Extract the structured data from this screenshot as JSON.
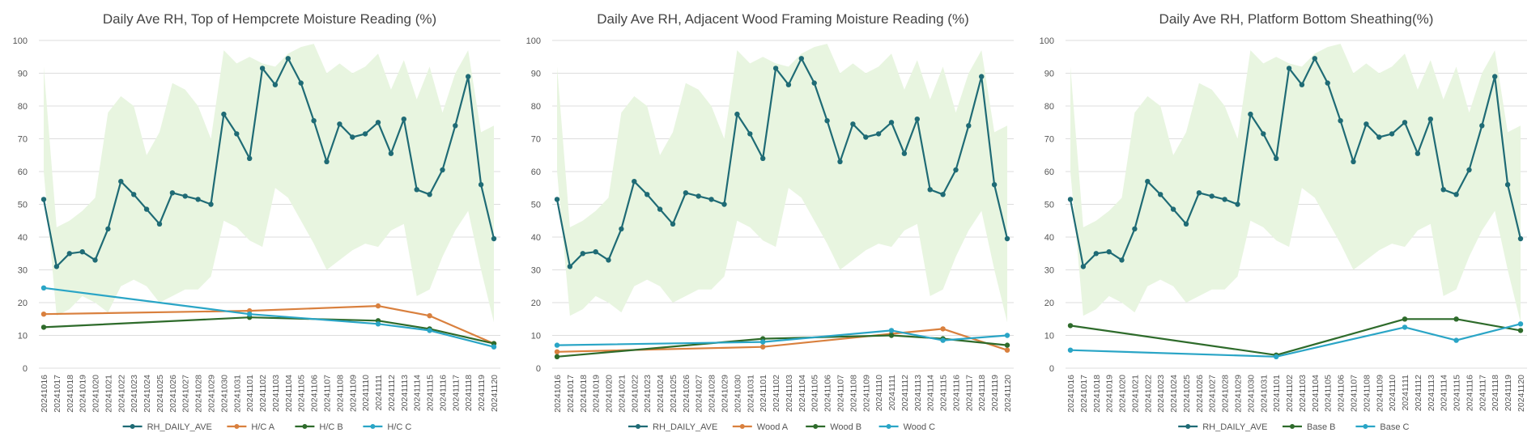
{
  "colors": {
    "rh": "#1f6b75",
    "orange": "#d9803e",
    "green": "#2e6b2b",
    "cyan": "#2aa5c6",
    "band": "#e8f5e0",
    "grid": "#dddddd",
    "text": "#555555"
  },
  "chart_data": [
    {
      "type": "line",
      "title": "Daily Ave RH, Top of Hempcrete Moisture Reading (%)",
      "xlabel": "",
      "ylabel": "",
      "ylim": [
        0,
        100
      ],
      "yticks": [
        0,
        10,
        20,
        30,
        40,
        50,
        60,
        70,
        80,
        90,
        100
      ],
      "grid": true,
      "legend_position": "bottom",
      "categories": [
        "20241016",
        "20241017",
        "20241018",
        "20241019",
        "20241020",
        "20241021",
        "20241022",
        "20241023",
        "20241024",
        "20241025",
        "20241026",
        "20241027",
        "20241028",
        "20241029",
        "20241030",
        "20241031",
        "20241101",
        "20241102",
        "20241103",
        "20241104",
        "20241105",
        "20241106",
        "20241107",
        "20241108",
        "20241109",
        "20241110",
        "20241111",
        "20241112",
        "20241113",
        "20241114",
        "20241115",
        "20241116",
        "20241117",
        "20241118",
        "20241119",
        "20241120"
      ],
      "band": {
        "min": [
          60,
          16,
          18,
          22,
          20,
          17,
          25,
          27,
          25,
          20,
          22,
          24,
          24,
          28,
          45,
          43,
          39,
          37,
          55,
          52,
          45,
          38,
          30,
          33,
          36,
          38,
          37,
          42,
          44,
          22,
          24,
          34,
          42,
          48,
          30,
          14
        ],
        "max": [
          92,
          43,
          45,
          48,
          52,
          78,
          83,
          80,
          65,
          72,
          87,
          85,
          80,
          70,
          97,
          93,
          95,
          93,
          92,
          96,
          98,
          99,
          90,
          93,
          90,
          92,
          96,
          85,
          94,
          82,
          92,
          78,
          90,
          97,
          72,
          74
        ]
      },
      "series": [
        {
          "name": "RH_DAILY_AVE",
          "color": "#1f6b75",
          "values": [
            51.5,
            31,
            35,
            35.5,
            33,
            42.5,
            57,
            53,
            48.5,
            44,
            53.5,
            52.5,
            51.5,
            50,
            77.5,
            71.5,
            64,
            91.5,
            86.5,
            94.5,
            87,
            75.5,
            63,
            74.5,
            70.5,
            71.5,
            75,
            65.5,
            76,
            54.5,
            53,
            60.5,
            74,
            89,
            56,
            39.5
          ]
        },
        {
          "name": "H/C A",
          "color": "#d9803e",
          "points": [
            [
              0,
              16.5
            ],
            [
              16,
              17.5
            ],
            [
              26,
              19
            ],
            [
              30,
              16
            ],
            [
              35,
              7.5
            ]
          ]
        },
        {
          "name": "H/C B",
          "color": "#2e6b2b",
          "points": [
            [
              0,
              12.5
            ],
            [
              16,
              15.5
            ],
            [
              26,
              14.5
            ],
            [
              30,
              12
            ],
            [
              35,
              7.5
            ]
          ]
        },
        {
          "name": "H/C C",
          "color": "#2aa5c6",
          "points": [
            [
              0,
              24.5
            ],
            [
              16,
              16.5
            ],
            [
              26,
              13.5
            ],
            [
              30,
              11.5
            ],
            [
              35,
              6.5
            ]
          ]
        }
      ]
    },
    {
      "type": "line",
      "title": "Daily Ave RH, Adjacent Wood Framing Moisture Reading (%)",
      "xlabel": "",
      "ylabel": "",
      "ylim": [
        0,
        100
      ],
      "yticks": [
        0,
        10,
        20,
        30,
        40,
        50,
        60,
        70,
        80,
        90,
        100
      ],
      "grid": true,
      "legend_position": "bottom",
      "categories": [
        "20241016",
        "20241017",
        "20241018",
        "20241019",
        "20241020",
        "20241021",
        "20241022",
        "20241023",
        "20241024",
        "20241025",
        "20241026",
        "20241027",
        "20241028",
        "20241029",
        "20241030",
        "20241031",
        "20241101",
        "20241102",
        "20241103",
        "20241104",
        "20241105",
        "20241106",
        "20241107",
        "20241108",
        "20241109",
        "20241110",
        "20241111",
        "20241112",
        "20241113",
        "20241114",
        "20241115",
        "20241116",
        "20241117",
        "20241118",
        "20241119",
        "20241120"
      ],
      "band": {
        "min": [
          60,
          16,
          18,
          22,
          20,
          17,
          25,
          27,
          25,
          20,
          22,
          24,
          24,
          28,
          45,
          43,
          39,
          37,
          55,
          52,
          45,
          38,
          30,
          33,
          36,
          38,
          37,
          42,
          44,
          22,
          24,
          34,
          42,
          48,
          30,
          14
        ],
        "max": [
          92,
          43,
          45,
          48,
          52,
          78,
          83,
          80,
          65,
          72,
          87,
          85,
          80,
          70,
          97,
          93,
          95,
          93,
          92,
          96,
          98,
          99,
          90,
          93,
          90,
          92,
          96,
          85,
          94,
          82,
          92,
          78,
          90,
          97,
          72,
          74
        ]
      },
      "series": [
        {
          "name": "RH_DAILY_AVE",
          "color": "#1f6b75",
          "values": [
            51.5,
            31,
            35,
            35.5,
            33,
            42.5,
            57,
            53,
            48.5,
            44,
            53.5,
            52.5,
            51.5,
            50,
            77.5,
            71.5,
            64,
            91.5,
            86.5,
            94.5,
            87,
            75.5,
            63,
            74.5,
            70.5,
            71.5,
            75,
            65.5,
            76,
            54.5,
            53,
            60.5,
            74,
            89,
            56,
            39.5
          ]
        },
        {
          "name": "Wood A",
          "color": "#d9803e",
          "points": [
            [
              0,
              5
            ],
            [
              16,
              6.5
            ],
            [
              26,
              10.5
            ],
            [
              30,
              12
            ],
            [
              35,
              5.5
            ]
          ]
        },
        {
          "name": "Wood B",
          "color": "#2e6b2b",
          "points": [
            [
              0,
              3.5
            ],
            [
              16,
              9
            ],
            [
              26,
              10
            ],
            [
              30,
              9
            ],
            [
              35,
              7
            ]
          ]
        },
        {
          "name": "Wood C",
          "color": "#2aa5c6",
          "points": [
            [
              0,
              7
            ],
            [
              16,
              8
            ],
            [
              26,
              11.5
            ],
            [
              30,
              8.5
            ],
            [
              35,
              10
            ]
          ]
        }
      ]
    },
    {
      "type": "line",
      "title": "Daily Ave RH, Platform Bottom Sheathing(%)",
      "xlabel": "",
      "ylabel": "",
      "ylim": [
        0,
        100
      ],
      "yticks": [
        0,
        10,
        20,
        30,
        40,
        50,
        60,
        70,
        80,
        90,
        100
      ],
      "grid": true,
      "legend_position": "bottom",
      "categories": [
        "20241016",
        "20241017",
        "20241018",
        "20241019",
        "20241020",
        "20241021",
        "20241022",
        "20241023",
        "20241024",
        "20241025",
        "20241026",
        "20241027",
        "20241028",
        "20241029",
        "20241030",
        "20241031",
        "20241101",
        "20241102",
        "20241103",
        "20241104",
        "20241105",
        "20241106",
        "20241107",
        "20241108",
        "20241109",
        "20241110",
        "20241111",
        "20241112",
        "20241113",
        "20241114",
        "20241115",
        "20241116",
        "20241117",
        "20241118",
        "20241119",
        "20241120"
      ],
      "band": {
        "min": [
          60,
          16,
          18,
          22,
          20,
          17,
          25,
          27,
          25,
          20,
          22,
          24,
          24,
          28,
          45,
          43,
          39,
          37,
          55,
          52,
          45,
          38,
          30,
          33,
          36,
          38,
          37,
          42,
          44,
          22,
          24,
          34,
          42,
          48,
          30,
          14
        ],
        "max": [
          92,
          43,
          45,
          48,
          52,
          78,
          83,
          80,
          65,
          72,
          87,
          85,
          80,
          70,
          97,
          93,
          95,
          93,
          92,
          96,
          98,
          99,
          90,
          93,
          90,
          92,
          96,
          85,
          94,
          82,
          92,
          78,
          90,
          97,
          72,
          74
        ]
      },
      "series": [
        {
          "name": "RH_DAILY_AVE",
          "color": "#1f6b75",
          "values": [
            51.5,
            31,
            35,
            35.5,
            33,
            42.5,
            57,
            53,
            48.5,
            44,
            53.5,
            52.5,
            51.5,
            50,
            77.5,
            71.5,
            64,
            91.5,
            86.5,
            94.5,
            87,
            75.5,
            63,
            74.5,
            70.5,
            71.5,
            75,
            65.5,
            76,
            54.5,
            53,
            60.5,
            74,
            89,
            56,
            39.5
          ]
        },
        {
          "name": "Base B",
          "color": "#2e6b2b",
          "points": [
            [
              0,
              13
            ],
            [
              16,
              4
            ],
            [
              26,
              15
            ],
            [
              30,
              15
            ],
            [
              35,
              11.5
            ]
          ]
        },
        {
          "name": "Base C",
          "color": "#2aa5c6",
          "points": [
            [
              0,
              5.5
            ],
            [
              16,
              3.5
            ],
            [
              26,
              12.5
            ],
            [
              30,
              8.5
            ],
            [
              35,
              13.5
            ]
          ]
        }
      ]
    }
  ]
}
